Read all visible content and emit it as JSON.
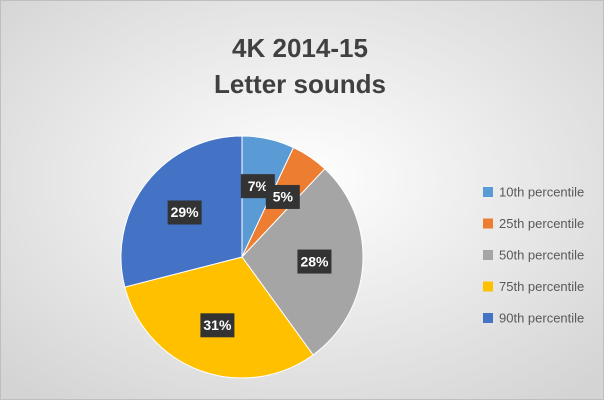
{
  "chart_data": {
    "type": "pie",
    "title": "4K 2014-15",
    "subtitle": "Letter sounds",
    "categories": [
      "10th percentile",
      "25th percentile",
      "50th percentile",
      "75th percentile",
      "90th percentile"
    ],
    "values": [
      7,
      5,
      28,
      31,
      29
    ],
    "value_labels": [
      "7%",
      "5%",
      "28%",
      "31%",
      "29%"
    ],
    "colors": [
      "#5b9bd5",
      "#ed7d31",
      "#a5a5a5",
      "#ffc000",
      "#4472c4"
    ],
    "legend": "right"
  }
}
